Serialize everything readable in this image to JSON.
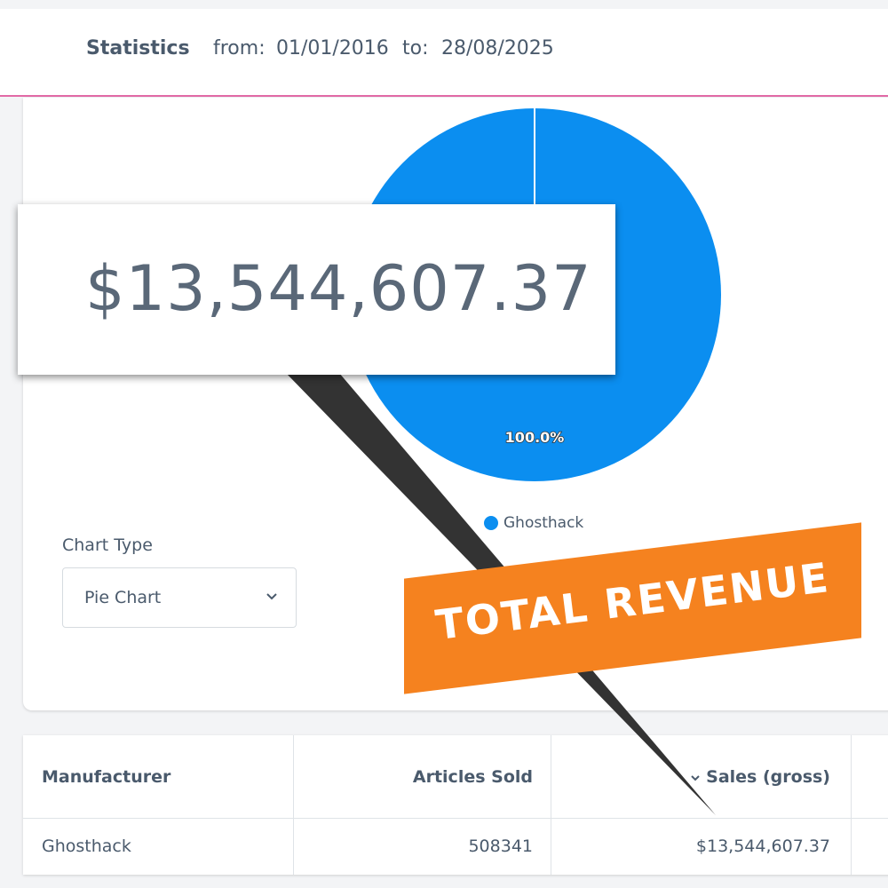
{
  "header": {
    "title": "Statistics",
    "from_label": "from:",
    "from": "01/01/2016",
    "to_label": "to:",
    "to": "28/08/2025"
  },
  "callout": {
    "amount": "$13,544,607.37"
  },
  "banner": {
    "text": "TOTAL REVENUE"
  },
  "chart_data": {
    "type": "pie",
    "categories": [
      "Ghosthack"
    ],
    "values": [
      100
    ],
    "value_labels": [
      "100.0%"
    ],
    "colors": [
      "#0b8ef0"
    ]
  },
  "chart_type": {
    "label": "Chart Type",
    "selected": "Pie Chart"
  },
  "table": {
    "columns": [
      "Manufacturer",
      "Articles Sold",
      "Sales (gross)"
    ],
    "rows": [
      [
        "Ghosthack",
        "508341",
        "$13,544,607.37"
      ]
    ]
  }
}
